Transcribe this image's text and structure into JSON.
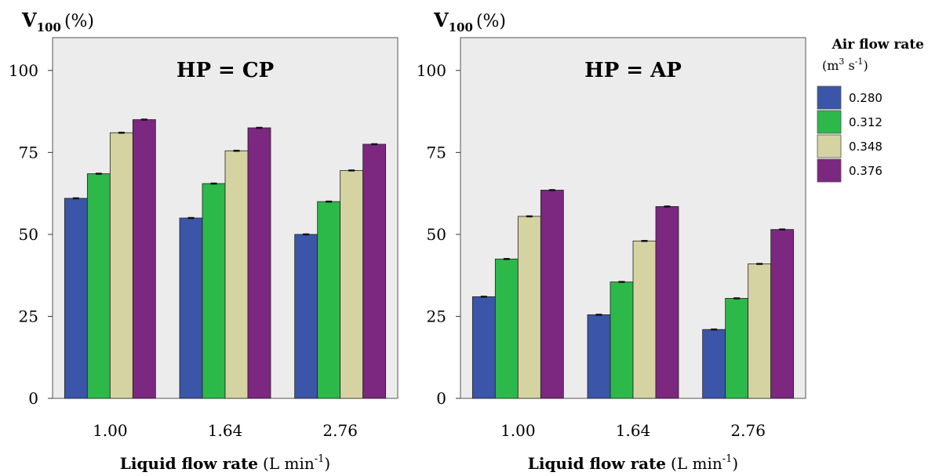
{
  "chart_data": [
    {
      "type": "bar",
      "title": "HP = CP",
      "ylabel_main": "V",
      "ylabel_sub": "100",
      "ylabel_unit": "(%)",
      "xlabel_bold": "Liquid flow rate",
      "xlabel_unit_pre": "(L min",
      "xlabel_unit_sup": "-1",
      "xlabel_unit_post": ")",
      "categories": [
        "1.00",
        "1.64",
        "2.76"
      ],
      "ylim": [
        0,
        110
      ],
      "yticks": [
        0,
        25,
        50,
        75,
        100
      ],
      "grid": false,
      "series": [
        {
          "name": "0.280",
          "values": [
            61,
            55,
            50
          ]
        },
        {
          "name": "0.312",
          "values": [
            68.5,
            65.5,
            60
          ]
        },
        {
          "name": "0.348",
          "values": [
            81,
            75.5,
            69.5
          ]
        },
        {
          "name": "0.376",
          "values": [
            85,
            82.5,
            77.5
          ]
        }
      ]
    },
    {
      "type": "bar",
      "title": "HP = AP",
      "ylabel_main": "V",
      "ylabel_sub": "100",
      "ylabel_unit": "(%)",
      "xlabel_bold": "Liquid flow rate",
      "xlabel_unit_pre": "(L min",
      "xlabel_unit_sup": "-1",
      "xlabel_unit_post": ")",
      "categories": [
        "1.00",
        "1.64",
        "2.76"
      ],
      "ylim": [
        0,
        110
      ],
      "yticks": [
        0,
        25,
        50,
        75,
        100
      ],
      "grid": false,
      "series": [
        {
          "name": "0.280",
          "values": [
            31,
            25.5,
            21
          ]
        },
        {
          "name": "0.312",
          "values": [
            42.5,
            35.5,
            30.5
          ]
        },
        {
          "name": "0.348",
          "values": [
            55.5,
            48,
            41
          ]
        },
        {
          "name": "0.376",
          "values": [
            63.5,
            58.5,
            51.5
          ]
        }
      ]
    }
  ],
  "legend": {
    "title": "Air flow rate",
    "unit_pre": "(m",
    "unit_sup1": "3",
    "unit_mid": " s",
    "unit_sup2": "-1",
    "unit_post": ")",
    "placement": "right",
    "items": [
      "0.280",
      "0.312",
      "0.348",
      "0.376"
    ]
  },
  "colors": {
    "series": [
      "#3b55a8",
      "#2db84a",
      "#d6d3a3",
      "#7c2780"
    ],
    "plot_bg": "#ececec",
    "border": "#333333"
  }
}
